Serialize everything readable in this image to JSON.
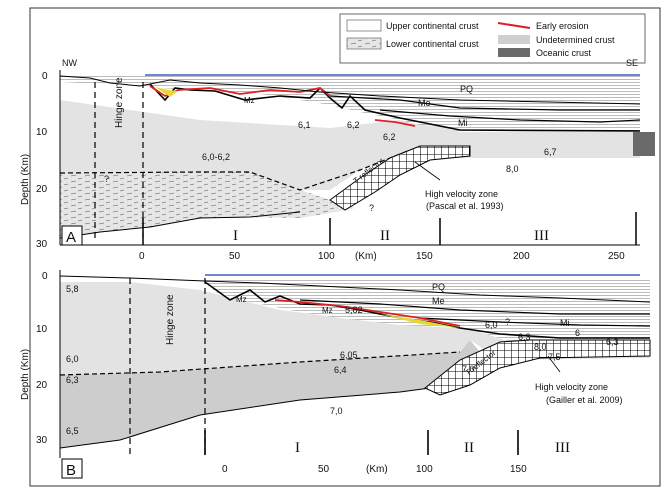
{
  "legend": {
    "upper": "Upper continental crust",
    "lower": "Lower continental crust",
    "erosion": "Early erosion",
    "undetermined": "Undetermined crust",
    "oceanic": "Oceanic crust"
  },
  "panelA": {
    "letter": "A",
    "nw": "NW",
    "se": "SE",
    "ylabel": "Depth (Km)",
    "xunit": "(Km)",
    "yticks": [
      "0",
      "10",
      "20",
      "30"
    ],
    "xticks": [
      "0",
      "50",
      "100",
      "150",
      "200",
      "250"
    ],
    "hinge": "Hinge zone",
    "domains": [
      "I",
      "II",
      "III"
    ],
    "labels": {
      "pq": "PQ",
      "me": "Me",
      "mi": "Mi",
      "mz": "Mz",
      "v1": "6,0-6,2",
      "v2": "6,1",
      "v3": "6,2",
      "v4": "6,2",
      "v5": "6,7",
      "v6": "8,0",
      "q1": "?",
      "q2": "?",
      "treflector": "T reflector",
      "hvz": "High velocity zone",
      "ref": "(Pascal et al. 1993)"
    }
  },
  "panelB": {
    "letter": "B",
    "ylabel": "Depth (Km)",
    "xunit": "(Km)",
    "yticks": [
      "0",
      "10",
      "20",
      "30"
    ],
    "xticks": [
      "0",
      "50",
      "100",
      "150"
    ],
    "hinge": "Hinge zone",
    "domains": [
      "I",
      "II",
      "III"
    ],
    "labels": {
      "pq": "PQ",
      "me": "Me",
      "mi": "Mi",
      "mz1": "Mz",
      "mz2": "Mz",
      "v58": "5,8",
      "v60": "6,0",
      "v63": "6,3",
      "v65": "6,5",
      "v582": "5,82",
      "v605": "6,05",
      "v64": "6,4",
      "v70a": "7,0",
      "v70b": "7,0",
      "v60b": "6,0",
      "v63b": "6,3",
      "v6": "6",
      "v63c": "6,3",
      "v80": "8,0",
      "v75": "7,5",
      "q": "?",
      "treflector": "T reflector",
      "hvz": "High velocity zone",
      "ref": "(Gailler et al. 2009)"
    }
  }
}
